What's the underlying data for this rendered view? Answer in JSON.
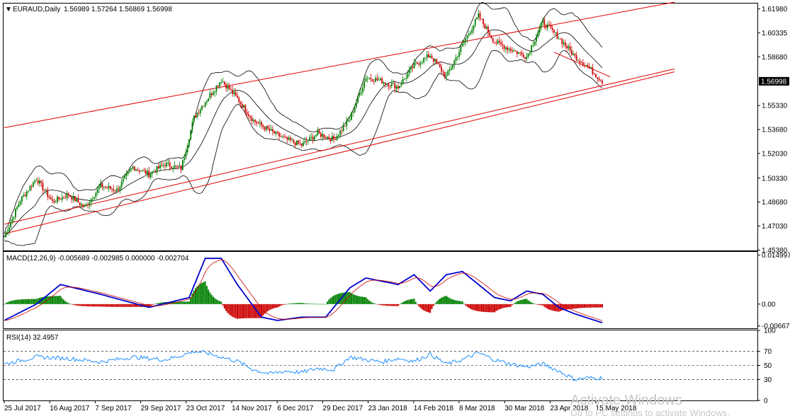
{
  "chart_data": [
    {
      "type": "candlestick",
      "symbol": "EURAUD,Daily",
      "ohlc_label": "1.56989 1.57264 1.56869 1.56998",
      "current_price_label": "1.56998",
      "price_ticks": [
        "1.61980",
        "1.60335",
        "1.58680",
        "1.55330",
        "1.53680",
        "1.52030",
        "1.50330",
        "1.48680",
        "1.47030",
        "1.45380"
      ],
      "ylim": [
        1.4535,
        1.6235
      ],
      "x_ticks": [
        "25 Jul 2017",
        "16 Aug 2017",
        "7 Sep 2017",
        "29 Sep 2017",
        "23 Oct 2017",
        "14 Nov 2017",
        "6 Dec 2017",
        "29 Dec 2017",
        "23 Jan 2018",
        "14 Feb 2018",
        "8 Mar 2018",
        "30 Mar 2018",
        "23 Apr 2018",
        "15 May 2018"
      ],
      "close_series": {
        "x": [
          0,
          10,
          20,
          30,
          40,
          50,
          60,
          70,
          80,
          90,
          100,
          110,
          118,
          125,
          135,
          145,
          155,
          165,
          175,
          185,
          195,
          205,
          215,
          225,
          235,
          245,
          255,
          265,
          275,
          285,
          295,
          305,
          315,
          325,
          335,
          345,
          355,
          362,
          372
        ],
        "values": [
          1.463,
          1.488,
          1.503,
          1.487,
          1.492,
          1.483,
          1.498,
          1.495,
          1.511,
          1.506,
          1.513,
          1.51,
          1.545,
          1.556,
          1.571,
          1.558,
          1.543,
          1.536,
          1.53,
          1.526,
          1.534,
          1.53,
          1.544,
          1.573,
          1.57,
          1.566,
          1.581,
          1.588,
          1.573,
          1.595,
          1.615,
          1.597,
          1.592,
          1.587,
          1.611,
          1.6,
          1.587,
          1.581,
          1.57
        ]
      },
      "indicators": [
        "Bollinger Bands",
        "Regression channel"
      ]
    },
    {
      "type": "line",
      "label": "MACD(12,26,9) -0.005689 -0.002985 0.000000 -0.002704",
      "y_ticks": [
        "0.014997",
        "0.00",
        "-0.006674"
      ],
      "ylim": [
        -0.0074,
        0.016
      ],
      "series": [
        {
          "kind": "histogram",
          "values_note": "green positive / red negative bars"
        },
        {
          "kind": "macd-line",
          "color": "#0000cc"
        },
        {
          "kind": "signal-line",
          "color": "#cc0000"
        }
      ],
      "macd_values": {
        "x": [
          0,
          20,
          35,
          60,
          90,
          115,
          125,
          135,
          145,
          160,
          170,
          185,
          200,
          215,
          225,
          235,
          245,
          255,
          265,
          275,
          285,
          295,
          305,
          315,
          325,
          335,
          345,
          355,
          372
        ],
        "values": [
          -0.005,
          0.0,
          0.006,
          0.003,
          -0.001,
          0.002,
          0.014,
          0.014,
          0.006,
          -0.004,
          -0.005,
          -0.004,
          -0.004,
          0.005,
          0.008,
          0.007,
          0.006,
          0.009,
          0.004,
          0.009,
          0.01,
          0.006,
          0.002,
          0.001,
          0.004,
          0.003,
          -0.001,
          -0.003,
          -0.0057
        ]
      }
    },
    {
      "type": "line",
      "label": "RSI(14) 32.4957",
      "y_ticks": [
        "100",
        "70",
        "50",
        "30",
        "0"
      ],
      "ylim": [
        0,
        100
      ],
      "values": {
        "x": [
          0,
          20,
          40,
          60,
          80,
          100,
          110,
          118,
          125,
          135,
          145,
          155,
          165,
          175,
          185,
          195,
          205,
          215,
          225,
          235,
          245,
          255,
          265,
          275,
          285,
          295,
          305,
          315,
          325,
          335,
          345,
          355,
          362,
          372
        ],
        "values": [
          52,
          62,
          60,
          55,
          62,
          58,
          64,
          70,
          68,
          62,
          56,
          44,
          38,
          42,
          40,
          46,
          44,
          62,
          58,
          55,
          60,
          56,
          66,
          52,
          58,
          68,
          58,
          52,
          48,
          52,
          42,
          30,
          32,
          32
        ]
      },
      "levels": [
        70,
        50,
        30
      ]
    }
  ],
  "watermark": {
    "line1": "Activate Windows",
    "line2": "Go to PC settings to activate Windows."
  },
  "colors": {
    "bull": "#008000",
    "bear": "#cc0000",
    "channel": "#e00000",
    "band": "#000000",
    "macd": "#0000cc",
    "signal": "#cc0000",
    "rsi": "#1e8fff"
  }
}
